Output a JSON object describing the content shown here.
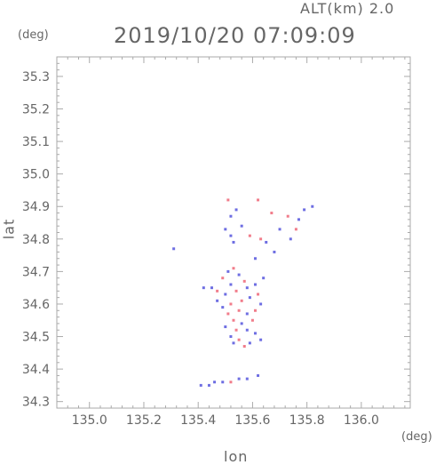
{
  "header": {
    "alt_label": "ALT(km) 2.0",
    "timestamp": "2019/10/20 07:09:09"
  },
  "chart_data": {
    "type": "heatmap",
    "title": "2019/10/20 07:09:09",
    "subtitle": "ALT(km) 2.0",
    "xlabel": "lon",
    "ylabel": "lat",
    "x_unit": "(deg)",
    "y_unit": "(deg)",
    "xlim": [
      134.88,
      136.18
    ],
    "ylim": [
      34.28,
      35.36
    ],
    "x_ticks": [
      "135.0",
      "135.2",
      "135.4",
      "135.6",
      "135.8",
      "136.0"
    ],
    "y_ticks": [
      "34.3",
      "34.4",
      "34.5",
      "34.6",
      "34.7",
      "34.8",
      "34.9",
      "35.0",
      "35.1",
      "35.2",
      "35.3"
    ],
    "grid": false,
    "colors": {
      "positive": "#ee6677",
      "negative": "#5555dd",
      "frame": "#aaaaaa"
    },
    "points": [
      {
        "lon": 135.51,
        "lat": 34.92,
        "v": 1
      },
      {
        "lon": 135.54,
        "lat": 34.89,
        "v": -1
      },
      {
        "lon": 135.62,
        "lat": 34.92,
        "v": 1
      },
      {
        "lon": 135.52,
        "lat": 34.87,
        "v": -1
      },
      {
        "lon": 135.5,
        "lat": 34.83,
        "v": -1
      },
      {
        "lon": 135.52,
        "lat": 34.81,
        "v": -1
      },
      {
        "lon": 135.56,
        "lat": 34.84,
        "v": -1
      },
      {
        "lon": 135.53,
        "lat": 34.79,
        "v": -1
      },
      {
        "lon": 135.67,
        "lat": 34.88,
        "v": 1
      },
      {
        "lon": 135.73,
        "lat": 34.87,
        "v": 1
      },
      {
        "lon": 135.77,
        "lat": 34.86,
        "v": -1
      },
      {
        "lon": 135.76,
        "lat": 34.83,
        "v": 1
      },
      {
        "lon": 135.82,
        "lat": 34.9,
        "v": -1
      },
      {
        "lon": 135.79,
        "lat": 34.89,
        "v": -1
      },
      {
        "lon": 135.63,
        "lat": 34.8,
        "v": 1
      },
      {
        "lon": 135.65,
        "lat": 34.79,
        "v": -1
      },
      {
        "lon": 135.7,
        "lat": 34.83,
        "v": -1
      },
      {
        "lon": 135.74,
        "lat": 34.8,
        "v": -1
      },
      {
        "lon": 135.68,
        "lat": 34.76,
        "v": -1
      },
      {
        "lon": 135.61,
        "lat": 34.74,
        "v": -1
      },
      {
        "lon": 135.31,
        "lat": 34.77,
        "v": -1
      },
      {
        "lon": 135.59,
        "lat": 34.81,
        "v": 1
      },
      {
        "lon": 135.51,
        "lat": 34.7,
        "v": -1
      },
      {
        "lon": 135.53,
        "lat": 34.71,
        "v": 1
      },
      {
        "lon": 135.55,
        "lat": 34.69,
        "v": -1
      },
      {
        "lon": 135.49,
        "lat": 34.68,
        "v": 1
      },
      {
        "lon": 135.57,
        "lat": 34.67,
        "v": 1
      },
      {
        "lon": 135.52,
        "lat": 34.66,
        "v": -1
      },
      {
        "lon": 135.45,
        "lat": 34.65,
        "v": -1
      },
      {
        "lon": 135.42,
        "lat": 34.65,
        "v": -1
      },
      {
        "lon": 135.47,
        "lat": 34.64,
        "v": 1
      },
      {
        "lon": 135.5,
        "lat": 34.63,
        "v": -1
      },
      {
        "lon": 135.54,
        "lat": 34.64,
        "v": 1
      },
      {
        "lon": 135.58,
        "lat": 34.65,
        "v": -1
      },
      {
        "lon": 135.61,
        "lat": 34.66,
        "v": -1
      },
      {
        "lon": 135.64,
        "lat": 34.68,
        "v": -1
      },
      {
        "lon": 135.62,
        "lat": 34.63,
        "v": 1
      },
      {
        "lon": 135.59,
        "lat": 34.62,
        "v": -1
      },
      {
        "lon": 135.56,
        "lat": 34.61,
        "v": 1
      },
      {
        "lon": 135.52,
        "lat": 34.6,
        "v": 1
      },
      {
        "lon": 135.49,
        "lat": 34.59,
        "v": -1
      },
      {
        "lon": 135.47,
        "lat": 34.61,
        "v": -1
      },
      {
        "lon": 135.51,
        "lat": 34.57,
        "v": 1
      },
      {
        "lon": 135.55,
        "lat": 34.58,
        "v": 1
      },
      {
        "lon": 135.58,
        "lat": 34.57,
        "v": -1
      },
      {
        "lon": 135.61,
        "lat": 34.58,
        "v": 1
      },
      {
        "lon": 135.63,
        "lat": 34.6,
        "v": -1
      },
      {
        "lon": 135.6,
        "lat": 34.55,
        "v": 1
      },
      {
        "lon": 135.56,
        "lat": 34.54,
        "v": -1
      },
      {
        "lon": 135.53,
        "lat": 34.55,
        "v": 1
      },
      {
        "lon": 135.5,
        "lat": 34.53,
        "v": -1
      },
      {
        "lon": 135.54,
        "lat": 34.52,
        "v": 1
      },
      {
        "lon": 135.58,
        "lat": 34.52,
        "v": -1
      },
      {
        "lon": 135.61,
        "lat": 34.51,
        "v": -1
      },
      {
        "lon": 135.52,
        "lat": 34.5,
        "v": -1
      },
      {
        "lon": 135.55,
        "lat": 34.49,
        "v": 1
      },
      {
        "lon": 135.59,
        "lat": 34.48,
        "v": -1
      },
      {
        "lon": 135.63,
        "lat": 34.49,
        "v": -1
      },
      {
        "lon": 135.57,
        "lat": 34.47,
        "v": 1
      },
      {
        "lon": 135.53,
        "lat": 34.48,
        "v": -1
      },
      {
        "lon": 135.44,
        "lat": 34.35,
        "v": -1
      },
      {
        "lon": 135.46,
        "lat": 34.36,
        "v": -1
      },
      {
        "lon": 135.49,
        "lat": 34.36,
        "v": -1
      },
      {
        "lon": 135.52,
        "lat": 34.36,
        "v": 1
      },
      {
        "lon": 135.55,
        "lat": 34.37,
        "v": -1
      },
      {
        "lon": 135.41,
        "lat": 34.35,
        "v": -1
      },
      {
        "lon": 135.58,
        "lat": 34.37,
        "v": -1
      },
      {
        "lon": 135.62,
        "lat": 34.38,
        "v": -1
      }
    ]
  }
}
